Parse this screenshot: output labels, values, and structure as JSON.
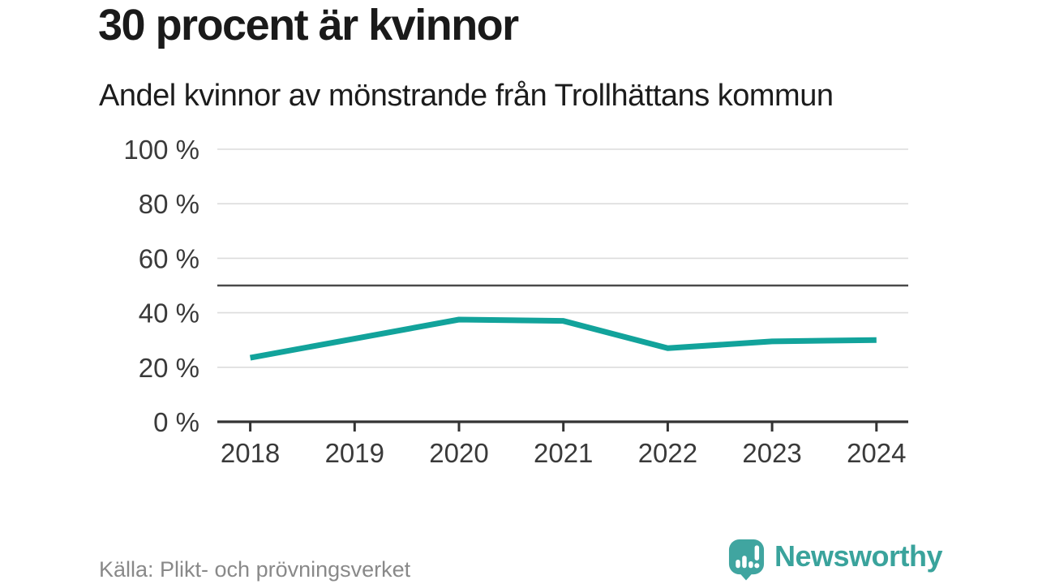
{
  "header": {
    "title": "30 procent är kvinnor",
    "subtitle": "Andel kvinnor av mönstrande från Trollhättans kommun"
  },
  "footer": {
    "source": "Källa: Plikt- och prövningsverket",
    "brand_name": "Newsworthy"
  },
  "colors": {
    "line": "#12a39b",
    "grid": "#dcdcdc",
    "axis": "#333333",
    "reference_line": "#4a4a4a",
    "tick_text": "#3a3a3a",
    "title_text": "#1a1a1a",
    "source_text": "#898989",
    "brand": "#3aa39c",
    "logo_bubble": "#40a5a0"
  },
  "chart_data": {
    "type": "line",
    "title": "Andel kvinnor av mönstrande från Trollhättans kommun",
    "x": [
      2018,
      2019,
      2020,
      2021,
      2022,
      2023,
      2024
    ],
    "series": [
      {
        "name": "Andel kvinnor av mönstrande",
        "color": "#12a39b",
        "values": [
          23.5,
          30.5,
          37.5,
          37,
          27,
          29.5,
          30
        ]
      }
    ],
    "xlabel": "",
    "ylabel": "",
    "ylim": [
      0,
      100
    ],
    "yticks": [
      0,
      20,
      40,
      60,
      80,
      100
    ],
    "ytick_suffix": " %",
    "xtick_labels": [
      "2018",
      "2019",
      "2020",
      "2021",
      "2022",
      "2023",
      "2024"
    ],
    "reference_line_y": 50,
    "grid": true,
    "legend": false
  }
}
